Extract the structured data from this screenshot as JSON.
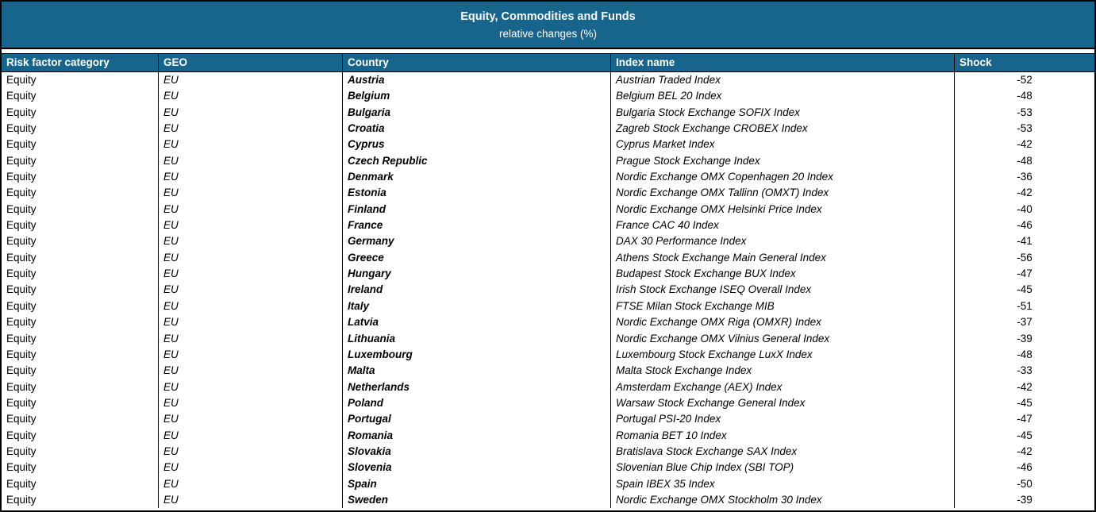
{
  "title": {
    "line1": "Equity, Commodities and Funds",
    "line2": "relative changes (%)"
  },
  "columns": [
    "Risk factor category",
    "GEO",
    "Country",
    "Index name",
    "Shock"
  ],
  "rows": [
    {
      "category": "Equity",
      "geo": "EU",
      "country": "Austria",
      "index": "Austrian Traded Index",
      "shock": "-52"
    },
    {
      "category": "Equity",
      "geo": "EU",
      "country": "Belgium",
      "index": "Belgium BEL 20 Index",
      "shock": "-48"
    },
    {
      "category": "Equity",
      "geo": "EU",
      "country": "Bulgaria",
      "index": "Bulgaria Stock Exchange SOFIX Index",
      "shock": "-53"
    },
    {
      "category": "Equity",
      "geo": "EU",
      "country": "Croatia",
      "index": "Zagreb Stock Exchange CROBEX Index",
      "shock": "-53"
    },
    {
      "category": "Equity",
      "geo": "EU",
      "country": "Cyprus",
      "index": "Cyprus Market Index",
      "shock": "-42"
    },
    {
      "category": "Equity",
      "geo": "EU",
      "country": "Czech Republic",
      "index": "Prague Stock Exchange Index",
      "shock": "-48"
    },
    {
      "category": "Equity",
      "geo": "EU",
      "country": "Denmark",
      "index": "Nordic Exchange OMX Copenhagen 20 Index",
      "shock": "-36"
    },
    {
      "category": "Equity",
      "geo": "EU",
      "country": "Estonia",
      "index": "Nordic Exchange OMX Tallinn (OMXT) Index",
      "shock": "-42"
    },
    {
      "category": "Equity",
      "geo": "EU",
      "country": "Finland",
      "index": "Nordic Exchange OMX Helsinki Price Index",
      "shock": "-40"
    },
    {
      "category": "Equity",
      "geo": "EU",
      "country": "France",
      "index": "France CAC 40 Index",
      "shock": "-46"
    },
    {
      "category": "Equity",
      "geo": "EU",
      "country": "Germany",
      "index": "DAX 30 Performance Index",
      "shock": "-41"
    },
    {
      "category": "Equity",
      "geo": "EU",
      "country": "Greece",
      "index": "Athens Stock Exchange Main General Index",
      "shock": "-56"
    },
    {
      "category": "Equity",
      "geo": "EU",
      "country": "Hungary",
      "index": "Budapest Stock Exchange BUX Index",
      "shock": "-47"
    },
    {
      "category": "Equity",
      "geo": "EU",
      "country": "Ireland",
      "index": "Irish Stock Exchange ISEQ Overall Index",
      "shock": "-45"
    },
    {
      "category": "Equity",
      "geo": "EU",
      "country": "Italy",
      "index": "FTSE Milan Stock Exchange MIB",
      "shock": "-51"
    },
    {
      "category": "Equity",
      "geo": "EU",
      "country": "Latvia",
      "index": "Nordic Exchange OMX Riga (OMXR) Index",
      "shock": "-37"
    },
    {
      "category": "Equity",
      "geo": "EU",
      "country": "Lithuania",
      "index": "Nordic Exchange OMX Vilnius General Index",
      "shock": "-39"
    },
    {
      "category": "Equity",
      "geo": "EU",
      "country": "Luxembourg",
      "index": "Luxembourg Stock Exchange LuxX Index",
      "shock": "-48"
    },
    {
      "category": "Equity",
      "geo": "EU",
      "country": "Malta",
      "index": "Malta Stock Exchange Index",
      "shock": "-33"
    },
    {
      "category": "Equity",
      "geo": "EU",
      "country": "Netherlands",
      "index": "Amsterdam Exchange (AEX) Index",
      "shock": "-42"
    },
    {
      "category": "Equity",
      "geo": "EU",
      "country": "Poland",
      "index": "Warsaw Stock Exchange General Index",
      "shock": "-45"
    },
    {
      "category": "Equity",
      "geo": "EU",
      "country": "Portugal",
      "index": "Portugal PSI-20 Index",
      "shock": "-47"
    },
    {
      "category": "Equity",
      "geo": "EU",
      "country": "Romania",
      "index": "Romania BET 10 Index",
      "shock": "-45"
    },
    {
      "category": "Equity",
      "geo": "EU",
      "country": "Slovakia",
      "index": "Bratislava Stock Exchange SAX Index",
      "shock": "-42"
    },
    {
      "category": "Equity",
      "geo": "EU",
      "country": "Slovenia",
      "index": "Slovenian Blue Chip Index (SBI TOP)",
      "shock": "-46"
    },
    {
      "category": "Equity",
      "geo": "EU",
      "country": "Spain",
      "index": "Spain IBEX 35 Index",
      "shock": "-50"
    },
    {
      "category": "Equity",
      "geo": "EU",
      "country": "Sweden",
      "index": "Nordic Exchange OMX Stockholm 30 Index",
      "shock": "-39"
    }
  ],
  "colors": {
    "header_bg": "#17648c",
    "header_text": "#ffffff",
    "body_bg": "#ffffff",
    "body_text": "#000000",
    "border": "#000000"
  }
}
